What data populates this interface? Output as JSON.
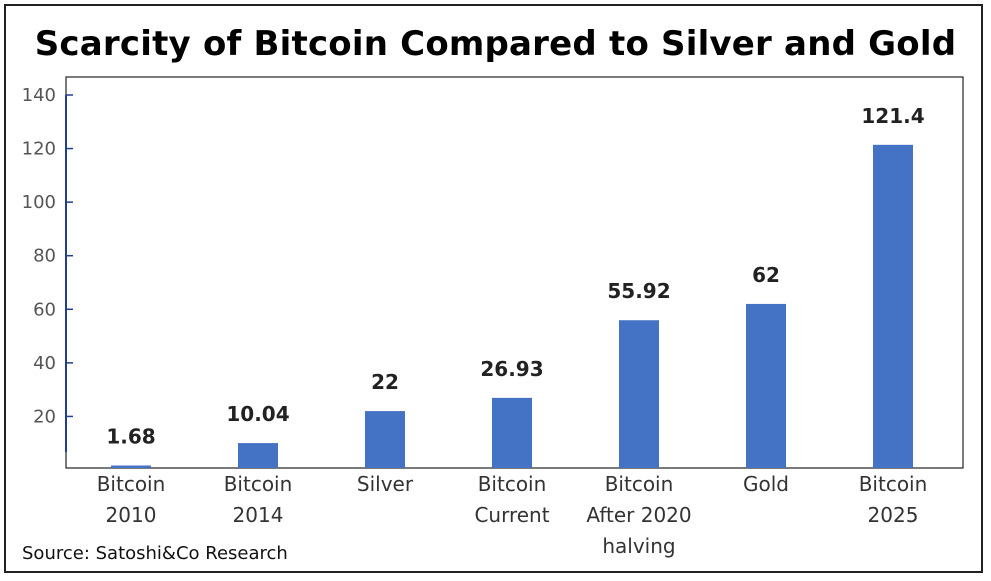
{
  "chart_data": {
    "type": "bar",
    "title": "Scarcity of Bitcoin Compared to Silver and Gold",
    "categories": [
      [
        "Bitcoin",
        "2010"
      ],
      [
        "Bitcoin",
        "2014"
      ],
      [
        "Silver"
      ],
      [
        "Bitcoin",
        "Current"
      ],
      [
        "Bitcoin",
        "After 2020",
        "halving"
      ],
      [
        "Gold"
      ],
      [
        "Bitcoin",
        "2025"
      ]
    ],
    "values": [
      1.68,
      10.04,
      22,
      26.93,
      55.92,
      62,
      121.4
    ],
    "data_labels": [
      "1.68",
      "10.04",
      "22",
      "26.93",
      "55.92",
      "62",
      "121.4"
    ],
    "yticks": [
      "20",
      "40",
      "60",
      "80",
      "100",
      "120",
      "140"
    ],
    "ylim": [
      0,
      140
    ],
    "xlabel": "",
    "ylabel": "",
    "grid": false,
    "legend": false,
    "bar_color": "#4472c4"
  },
  "source": "Source: Satoshi&Co Research"
}
